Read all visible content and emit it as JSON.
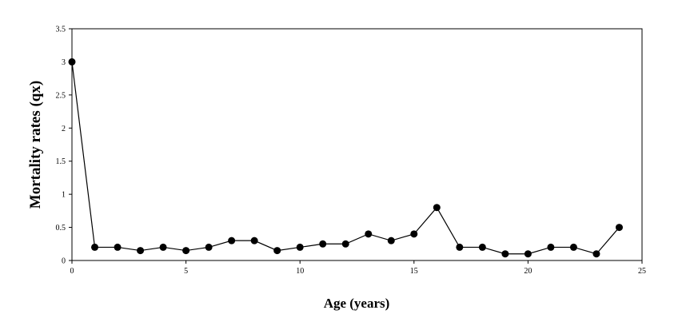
{
  "chart_data": {
    "type": "line",
    "title": "",
    "xlabel": "Age (years)",
    "ylabel": "Mortality rates (qx)",
    "xlim": [
      0,
      25
    ],
    "ylim": [
      0,
      3.5
    ],
    "x_ticks": [
      "0",
      "5",
      "10",
      "15",
      "20",
      "25"
    ],
    "y_ticks": [
      "0",
      "0.5",
      "1",
      "1.5",
      "2",
      "2.5",
      "3",
      "3.5"
    ],
    "grid": false,
    "legend": "none",
    "series": [
      {
        "color": "#000000",
        "marker": "circle",
        "x": [
          0,
          1,
          2,
          3,
          4,
          5,
          6,
          7,
          8,
          9,
          10,
          11,
          12,
          13,
          14,
          15,
          16,
          17,
          18,
          19,
          20,
          21,
          22,
          23,
          24
        ],
        "y": [
          3.0,
          0.2,
          0.2,
          0.15,
          0.2,
          0.15,
          0.2,
          0.3,
          0.3,
          0.15,
          0.2,
          0.25,
          0.25,
          0.4,
          0.3,
          0.4,
          0.8,
          0.2,
          0.2,
          0.1,
          0.1,
          0.2,
          0.2,
          0.1,
          0.5
        ]
      }
    ]
  }
}
